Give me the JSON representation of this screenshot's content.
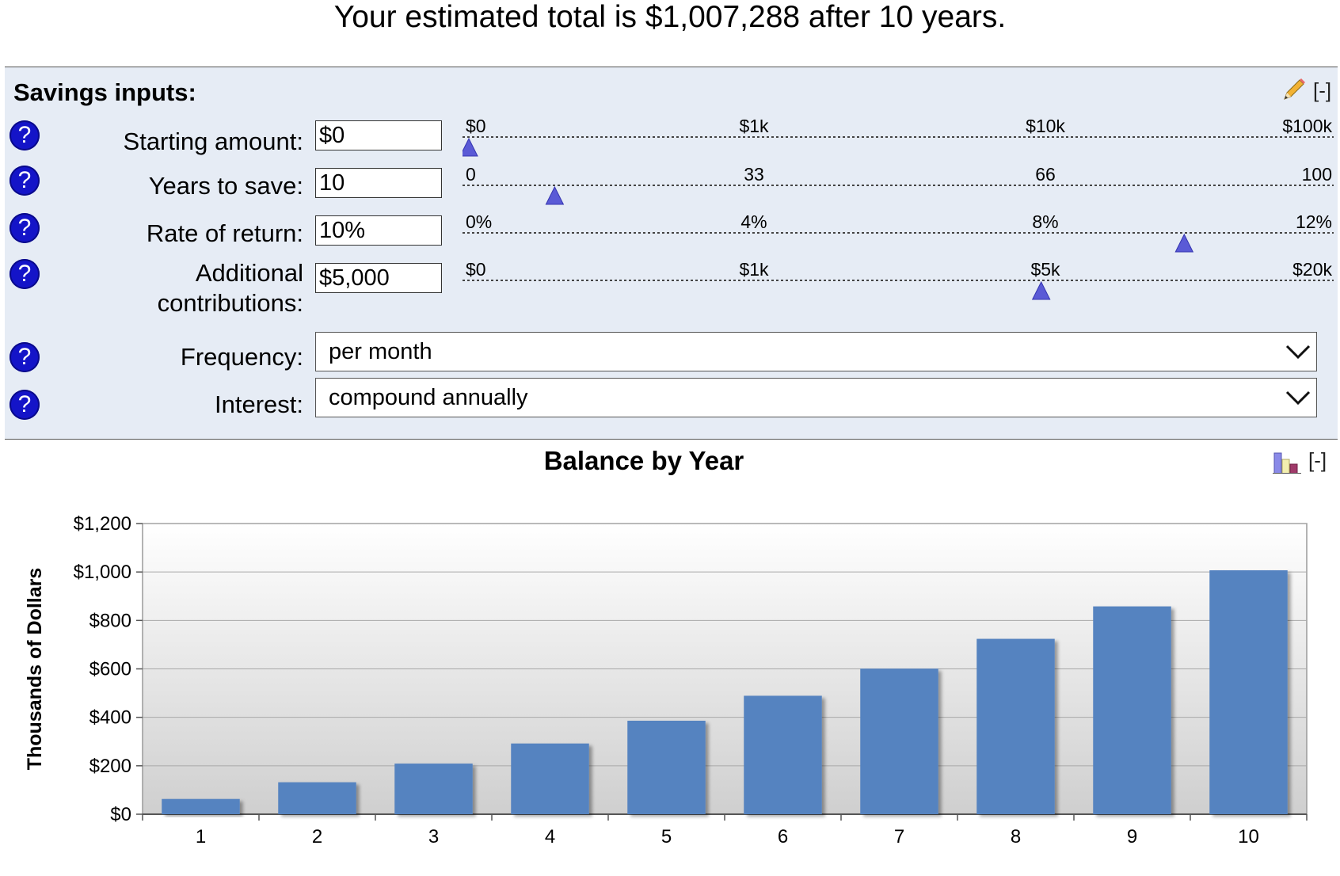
{
  "headline": "Your estimated total is $1,007,288 after 10 years.",
  "panel": {
    "title": "Savings inputs:",
    "collapse_label": "[-]",
    "edit_icon": "pencil-icon",
    "help_icon": "question-mark-icon",
    "help_glyph": "?"
  },
  "inputs": [
    {
      "label": "Starting amount:",
      "value": "$0",
      "ticks": [
        "$0",
        "$1k",
        "$10k",
        "$100k"
      ],
      "level": 0.0
    },
    {
      "label": "Years to save:",
      "value": "10",
      "ticks": [
        "0",
        "33",
        "66",
        "100"
      ],
      "level": 0.1
    },
    {
      "label": "Rate of return:",
      "value": "10%",
      "ticks": [
        "0%",
        "4%",
        "8%",
        "12%"
      ],
      "level": 0.8333
    },
    {
      "label_line1": "Additional",
      "label_line2": "contributions:",
      "value": "$5,000",
      "ticks": [
        "$0",
        "$1k",
        "$5k",
        "$20k"
      ],
      "level": 0.6667
    }
  ],
  "selects": {
    "frequency": {
      "label": "Frequency:",
      "value": "per month"
    },
    "interest": {
      "label": "Interest:",
      "value": "compound annually"
    }
  },
  "chart_section": {
    "title": "Balance by Year",
    "collapse_label": "[-]",
    "chart_toggle_icon": "bar-chart-icon"
  },
  "chart_data": {
    "type": "bar",
    "title": "Balance by Year",
    "xlabel": "",
    "ylabel": "Thousands of Dollars",
    "categories": [
      "1",
      "2",
      "3",
      "4",
      "5",
      "6",
      "7",
      "8",
      "9",
      "10"
    ],
    "values": [
      63,
      132,
      209,
      292,
      386,
      489,
      601,
      724,
      858,
      1007
    ],
    "ylim": [
      0,
      1200
    ],
    "yticks": [
      "$0",
      "$200",
      "$400",
      "$600",
      "$800",
      "$1,000",
      "$1,200"
    ],
    "ytick_values": [
      0,
      200,
      400,
      600,
      800,
      1000,
      1200
    ],
    "grid": true,
    "legend": "none",
    "colors": {
      "bar": "#5583c0",
      "plot_top": "#ffffff",
      "plot_bottom": "#cfcfcf"
    }
  }
}
